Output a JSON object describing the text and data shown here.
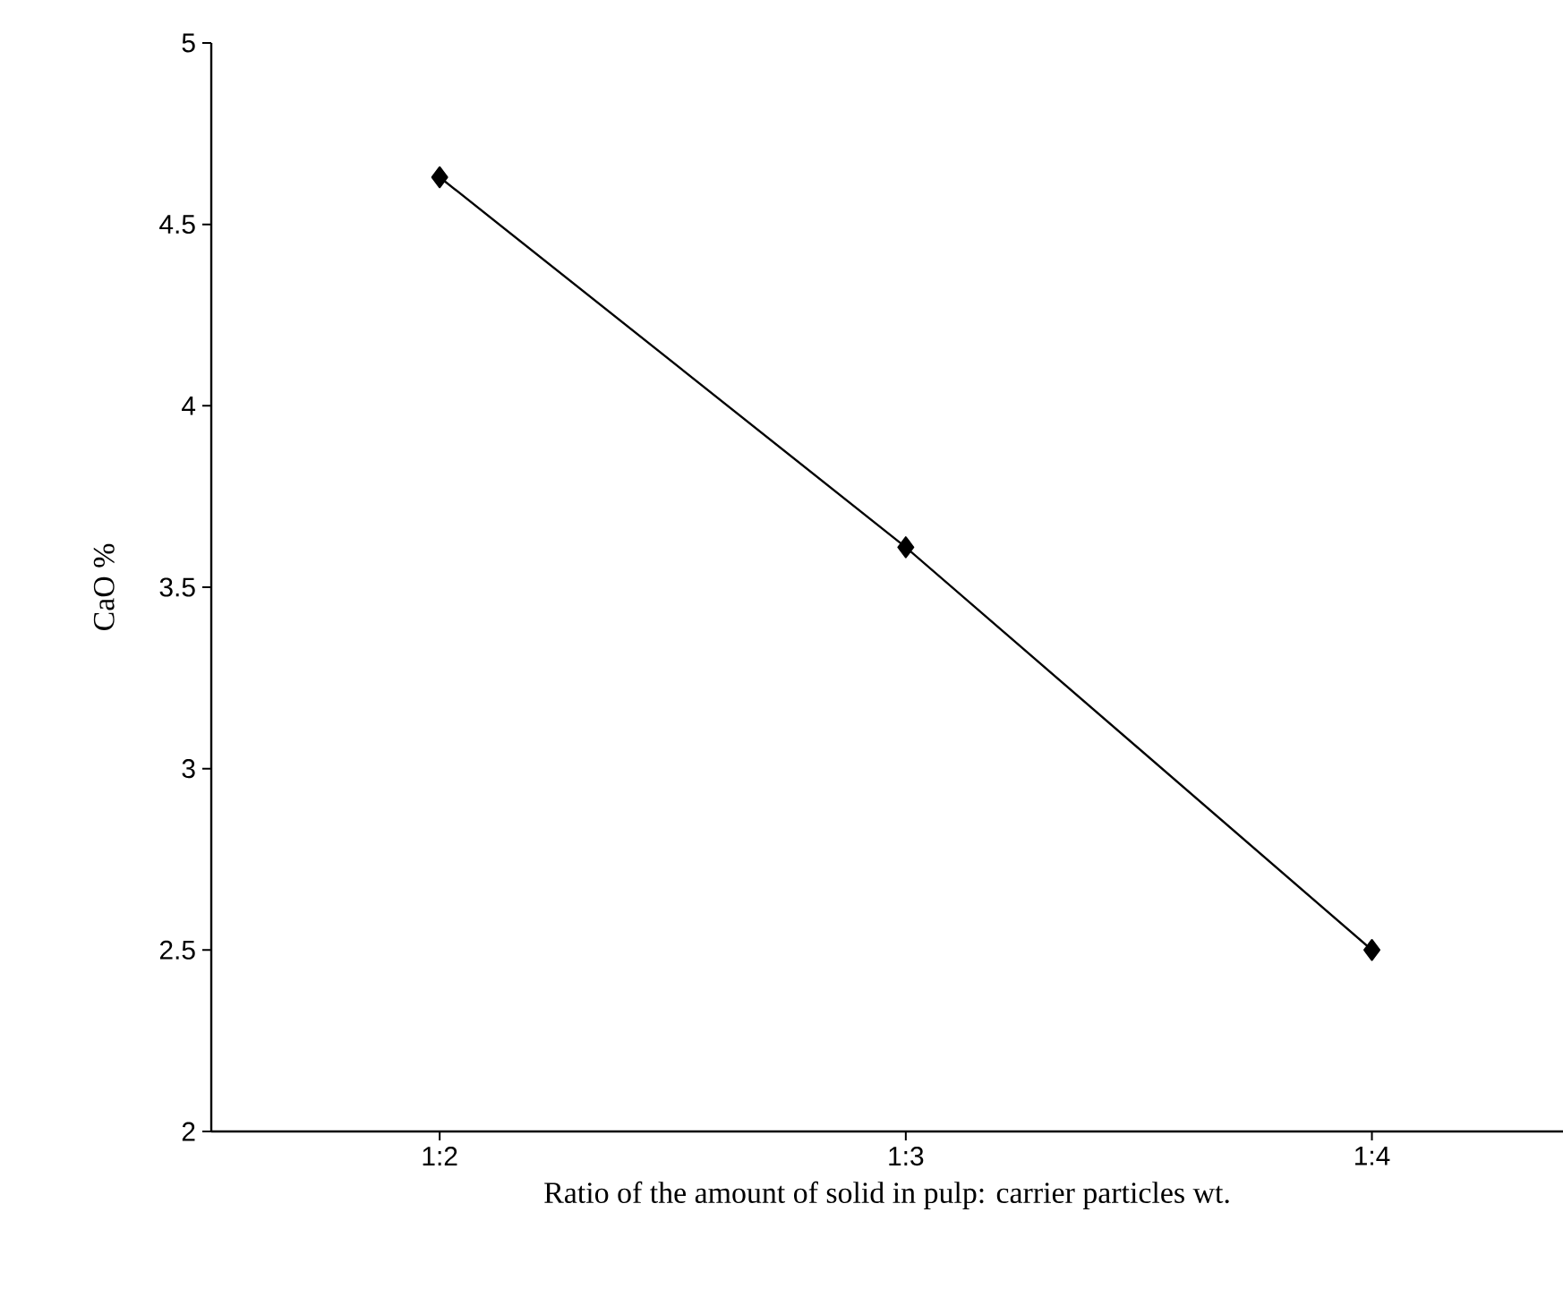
{
  "chart_data": {
    "type": "line",
    "xlabel": "Ratio of the amount of solid in pulp: carrier particles wt.",
    "ylabel": "CaO %",
    "categories": [
      "1:2",
      "1:3",
      "1:4"
    ],
    "series": [
      {
        "color": "#000000",
        "values": [
          4.63,
          3.61,
          2.5
        ]
      }
    ],
    "ylim": [
      2,
      5
    ],
    "yticks": [
      2,
      2.5,
      3,
      3.5,
      4,
      4.5,
      5
    ],
    "marker": "diamond",
    "line_style": "solid"
  }
}
